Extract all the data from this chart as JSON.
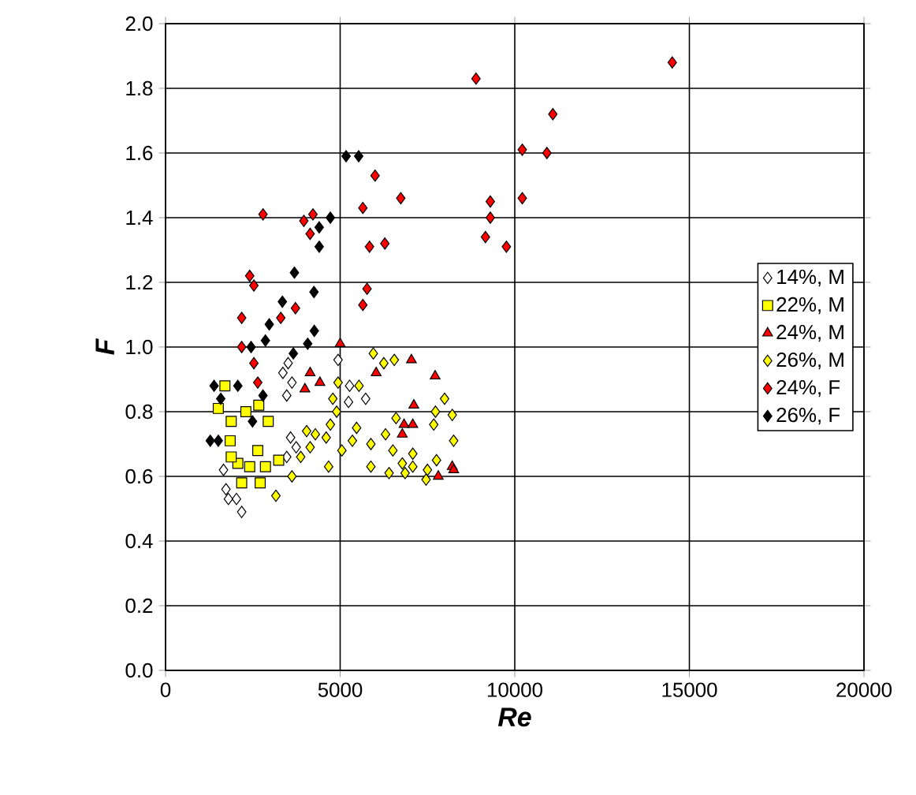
{
  "chart_data": {
    "type": "scatter",
    "xlabel": "Re",
    "ylabel": "F",
    "xlim": [
      0,
      20000
    ],
    "ylim": [
      0,
      2.0
    ],
    "xticks": [
      0,
      5000,
      10000,
      15000,
      20000
    ],
    "yticks": [
      {
        "value": 0,
        "label": "0.0"
      },
      {
        "value": 0.2,
        "label": "0.2"
      },
      {
        "value": 0.4,
        "label": "0.4"
      },
      {
        "value": 0.6,
        "label": "0.6"
      },
      {
        "value": 0.8,
        "label": "0.8"
      },
      {
        "value": 1.0,
        "label": "1.0"
      },
      {
        "value": 1.2,
        "label": "1.2"
      },
      {
        "value": 1.4,
        "label": "1.4"
      },
      {
        "value": 1.6,
        "label": "1.6"
      },
      {
        "value": 1.8,
        "label": "1.8"
      },
      {
        "value": 2.0,
        "label": "2.0"
      }
    ],
    "grid": true,
    "legend": "right",
    "series": [
      {
        "name": "14%, M",
        "color": "#ffffff",
        "marker": "diamond",
        "x": [
          3510,
          3360,
          4940,
          3620,
          3470,
          5270,
          5500,
          5730,
          5240,
          3580,
          3740,
          3470,
          1660,
          1730,
          2030,
          2180,
          1800
        ],
        "values": [
          0.95,
          0.92,
          0.96,
          0.89,
          0.85,
          0.88,
          null,
          0.84,
          0.83,
          0.72,
          0.69,
          0.66,
          0.62,
          0.56,
          0.53,
          0.49,
          0.53
        ]
      },
      {
        "name": "22%, M",
        "color": "#ffff00",
        "marker": "square",
        "x": [
          1700,
          1510,
          1880,
          2300,
          2940,
          2670,
          1850,
          2640,
          2070,
          2860,
          3240,
          2410,
          2180,
          2710,
          1880
        ],
        "values": [
          0.88,
          0.81,
          0.77,
          0.8,
          0.77,
          0.82,
          0.71,
          0.68,
          0.64,
          0.63,
          0.65,
          0.63,
          0.58,
          0.58,
          0.66
        ]
      },
      {
        "name": "24%, M",
        "color": "#ff0000",
        "marker": "triangle",
        "x": [
          5000,
          7040,
          7720,
          4140,
          4420,
          3990,
          6030,
          7110,
          6830,
          7080,
          6780,
          8210,
          8250,
          7810
        ],
        "values": [
          1.01,
          0.96,
          0.91,
          0.92,
          0.89,
          0.87,
          0.92,
          0.82,
          0.76,
          0.76,
          0.73,
          0.63,
          0.62,
          0.6
        ]
      },
      {
        "name": "26%, M",
        "color": "#ffff00",
        "marker": "diamond",
        "x": [
          5950,
          6550,
          6250,
          4940,
          5540,
          4790,
          4900,
          7990,
          8210,
          7730,
          7680,
          6600,
          6300,
          8250,
          4720,
          4290,
          4040,
          4600,
          4140,
          5470,
          5350,
          5880,
          5050,
          3870,
          4670,
          6510,
          7080,
          7760,
          5880,
          6400,
          6860,
          7500,
          7460,
          7080,
          3620,
          3160,
          6780
        ],
        "values": [
          0.98,
          0.96,
          0.95,
          0.89,
          0.88,
          0.84,
          0.8,
          0.84,
          0.79,
          0.8,
          0.76,
          0.78,
          0.73,
          0.71,
          0.76,
          0.73,
          0.74,
          0.72,
          0.69,
          0.75,
          0.71,
          0.7,
          0.68,
          0.66,
          0.63,
          0.68,
          0.67,
          0.65,
          0.63,
          0.61,
          0.61,
          0.62,
          0.59,
          0.63,
          0.6,
          0.54,
          0.64
        ]
      },
      {
        "name": "24%, F",
        "color": "#ff0000",
        "marker": "diamond",
        "x": [
          8890,
          14510,
          11090,
          10215,
          10920,
          10215,
          9300,
          9300,
          9160,
          9760,
          6000,
          6735,
          5650,
          2790,
          3960,
          4220,
          4140,
          5840,
          6280,
          2410,
          2530,
          5770,
          5650,
          3720,
          2180,
          3300,
          2180,
          2530,
          2640
        ],
        "values": [
          1.83,
          1.88,
          1.72,
          1.61,
          1.6,
          1.46,
          1.45,
          1.4,
          1.34,
          1.31,
          1.53,
          1.46,
          1.43,
          1.41,
          1.39,
          1.41,
          1.35,
          1.31,
          1.32,
          1.22,
          1.19,
          1.18,
          1.13,
          1.12,
          1.09,
          1.09,
          1.0,
          0.95,
          0.89
        ]
      },
      {
        "name": "26%, F",
        "color": "#000000",
        "marker": "diamond",
        "x": [
          5170,
          5530,
          4720,
          4400,
          4400,
          3690,
          4250,
          3345,
          2970,
          2860,
          2450,
          4260,
          4070,
          3660,
          2790,
          1390,
          1580,
          2070,
          2490,
          1510,
          1280
        ],
        "values": [
          1.59,
          1.59,
          1.4,
          1.37,
          1.31,
          1.23,
          1.17,
          1.14,
          1.07,
          1.02,
          1.0,
          1.05,
          1.01,
          0.98,
          0.85,
          0.88,
          0.84,
          0.88,
          0.77,
          0.71,
          0.71
        ]
      }
    ]
  }
}
